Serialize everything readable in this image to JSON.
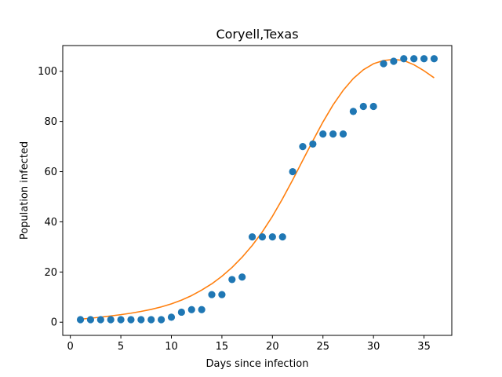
{
  "chart_data": {
    "type": "scatter",
    "title": "Coryell,Texas",
    "xlabel": "Days since infection",
    "ylabel": "Population infected",
    "xlim": [
      -0.75,
      37.75
    ],
    "ylim": [
      -5.25,
      110.25
    ],
    "xticks": [
      0,
      5,
      10,
      15,
      20,
      25,
      30,
      35
    ],
    "yticks": [
      0,
      20,
      40,
      60,
      80,
      100
    ],
    "grid": false,
    "series": [
      {
        "kind": "scatter",
        "color": "#1f77b4",
        "x": [
          1,
          2,
          3,
          4,
          5,
          6,
          7,
          8,
          9,
          10,
          11,
          12,
          13,
          14,
          15,
          16,
          17,
          18,
          19,
          20,
          21,
          22,
          23,
          24,
          25,
          26,
          27,
          28,
          29,
          30,
          31,
          32,
          33,
          34,
          35,
          36
        ],
        "y": [
          1,
          1,
          1,
          1,
          1,
          1,
          1,
          1,
          1,
          2,
          4,
          5,
          5,
          11,
          11,
          17,
          18,
          34,
          34,
          34,
          34,
          60,
          70,
          71,
          75,
          75,
          75,
          84,
          86,
          86,
          103,
          104,
          105,
          105,
          105,
          105
        ]
      },
      {
        "kind": "line",
        "color": "#ff7f0e",
        "x": [
          1,
          2,
          3,
          4,
          5,
          6,
          7,
          8,
          9,
          10,
          11,
          12,
          13,
          14,
          15,
          16,
          17,
          18,
          19,
          20,
          21,
          22,
          23,
          24,
          25,
          26,
          27,
          28,
          29,
          30,
          31,
          32,
          33,
          34,
          35,
          36
        ],
        "y": [
          1.2,
          1.6,
          2.0,
          2.5,
          3.0,
          3.6,
          4.3,
          5.1,
          6.1,
          7.3,
          8.8,
          10.6,
          12.8,
          15.3,
          18.3,
          21.8,
          25.9,
          30.6,
          36.0,
          42.2,
          49.2,
          56.7,
          64.5,
          72.3,
          79.8,
          86.6,
          92.4,
          97.1,
          100.6,
          103.0,
          104.3,
          104.7,
          104.3,
          102.6,
          100.2,
          97.4
        ]
      }
    ]
  }
}
